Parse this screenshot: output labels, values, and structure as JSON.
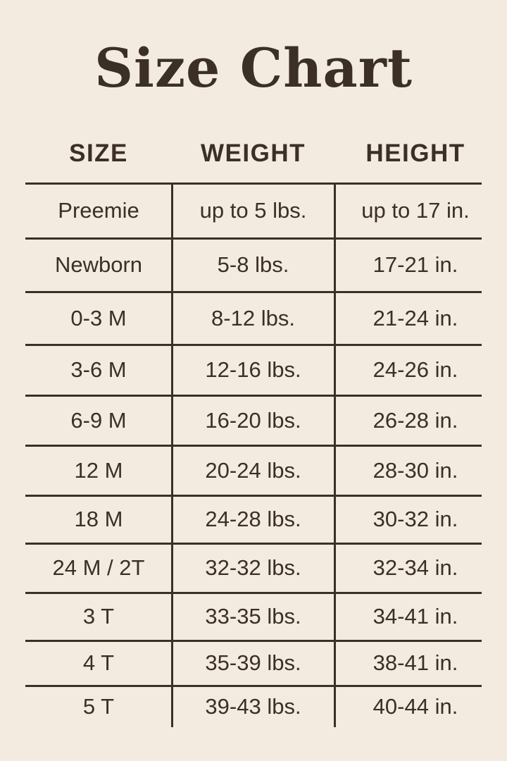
{
  "title": "Size Chart",
  "colors": {
    "background": "#f3ebe0",
    "text": "#3b2f26",
    "rule": "#3b2f26"
  },
  "table": {
    "headers": [
      "SIZE",
      "WEIGHT",
      "HEIGHT"
    ],
    "rows": [
      [
        "Preemie",
        "up to 5 lbs.",
        "up to 17 in."
      ],
      [
        "Newborn",
        "5-8 lbs.",
        "17-21 in."
      ],
      [
        "0-3 M",
        "8-12 lbs.",
        "21-24 in."
      ],
      [
        "3-6 M",
        "12-16 lbs.",
        "24-26 in."
      ],
      [
        "6-9 M",
        "16-20 lbs.",
        "26-28 in."
      ],
      [
        "12 M",
        "20-24 lbs.",
        "28-30 in."
      ],
      [
        "18 M",
        "24-28 lbs.",
        "30-32 in."
      ],
      [
        "24 M / 2T",
        "32-32 lbs.",
        "32-34 in."
      ],
      [
        "3 T",
        "33-35 lbs.",
        "34-41 in."
      ],
      [
        "4 T",
        "35-39 lbs.",
        "38-41 in."
      ],
      [
        "5 T",
        "39-43 lbs.",
        "40-44 in."
      ]
    ]
  }
}
